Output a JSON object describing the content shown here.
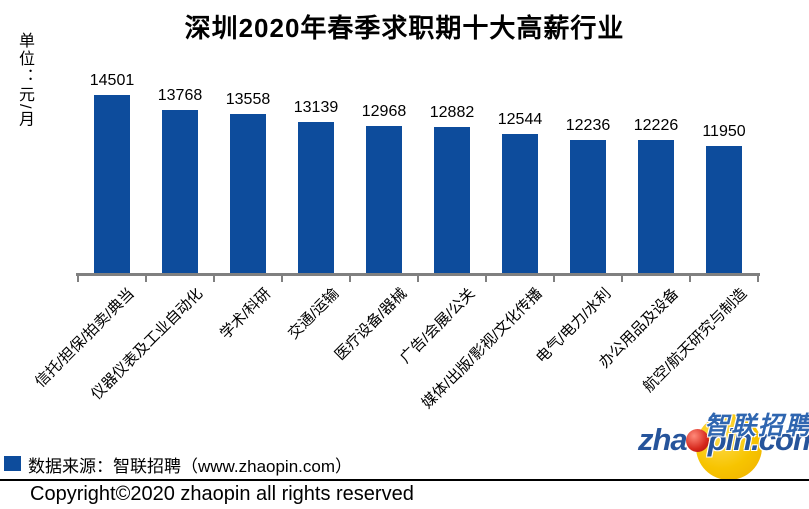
{
  "title": "深圳2020年春季求职期十大高薪行业",
  "unit_label": "单位：元/月",
  "chart_data": {
    "type": "bar",
    "title": "深圳2020年春季求职期十大高薪行业",
    "unit": "元/月",
    "categories": [
      "信托/担保/拍卖/典当",
      "仪器仪表及工业自动化",
      "学术/科研",
      "交通/运输",
      "医疗设备/器械",
      "广告/会展/公关",
      "媒体/出版/影视/文化传播",
      "电气/电力/水利",
      "办公用品及设备",
      "航空/航天研究与制造"
    ],
    "values": [
      14501,
      13768,
      13558,
      13139,
      12968,
      12882,
      12544,
      12236,
      12226,
      11950
    ],
    "bar_color": "#0D4C9C",
    "axis_color": "#808080",
    "ylim": [
      5600,
      14900
    ],
    "grid": false,
    "data_labels": true,
    "legend_position": "bottom-left"
  },
  "legend": {
    "marker_color": "#0D4C9C",
    "source_label": "数据来源：智联招聘（www.zhaopin.com）"
  },
  "footer": {
    "copyright": "Copyright©2020 zhaopin all rights reserved"
  },
  "logo": {
    "brand_cn": "智联招聘",
    "brand_en_pre": "zha",
    "brand_en_post": "pin.com"
  }
}
